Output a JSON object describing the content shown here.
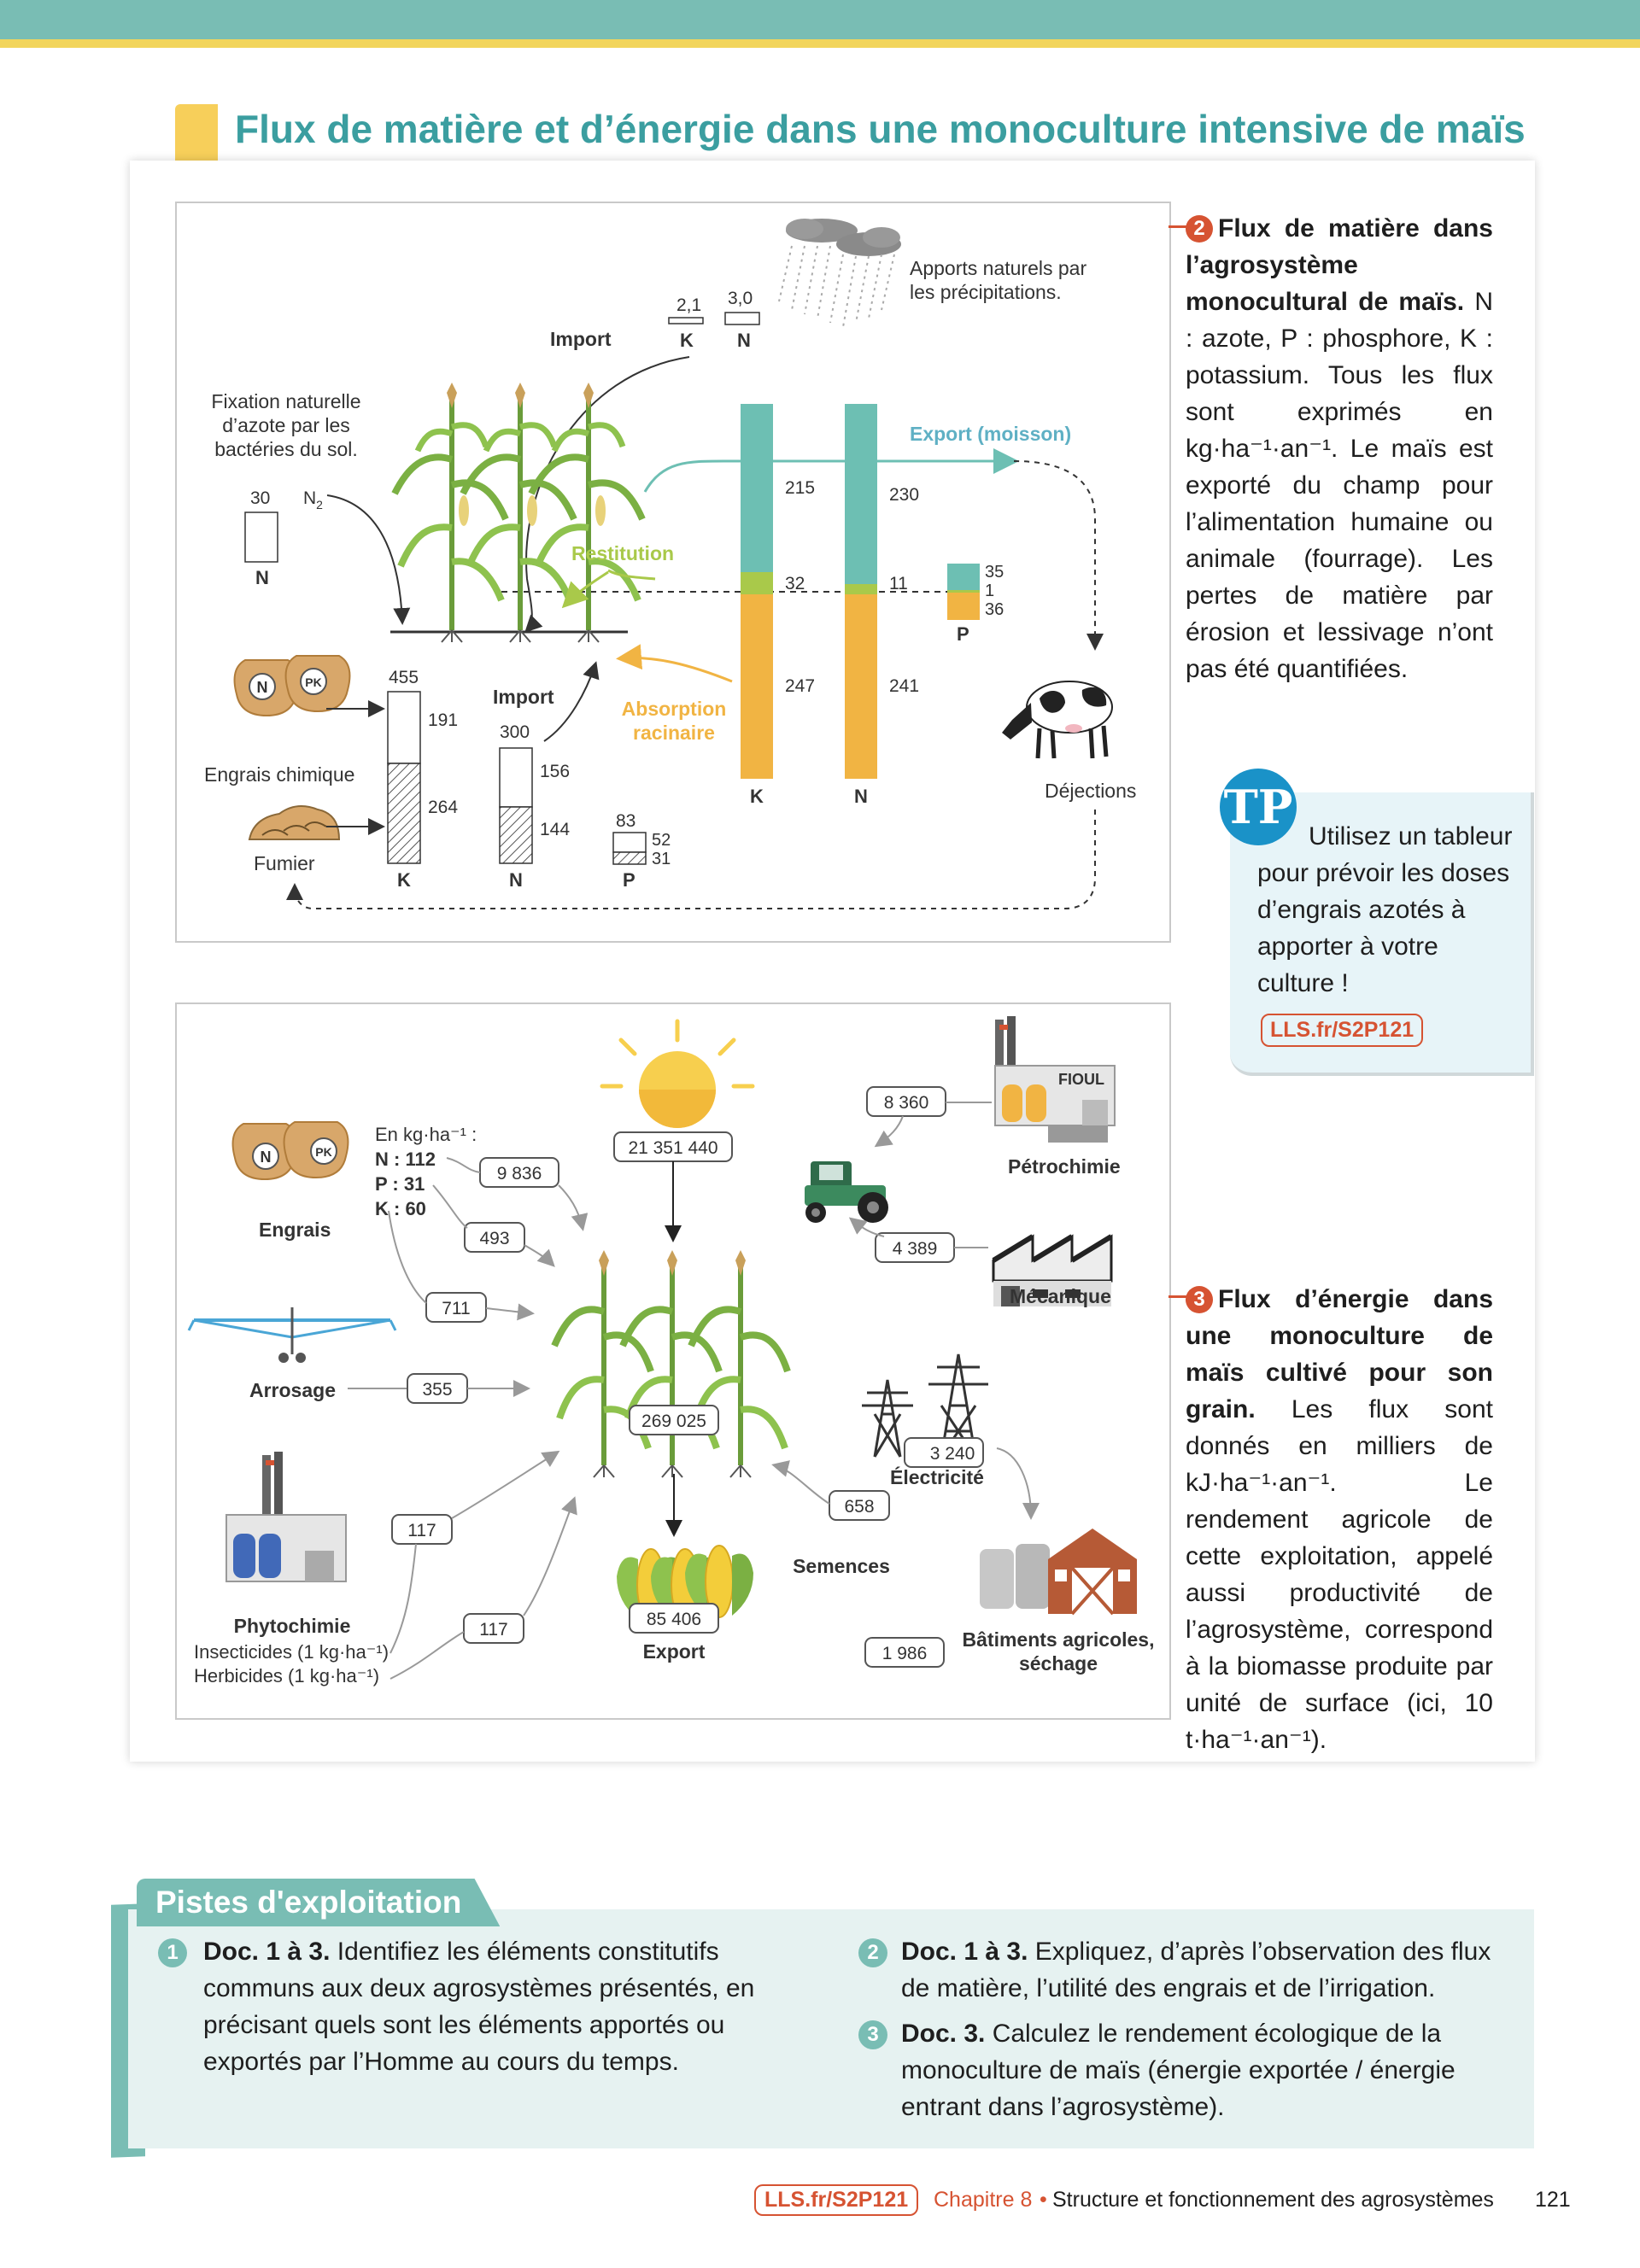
{
  "page": {
    "title": "Flux de matière et d’énergie dans une monoculture intensive de maïs"
  },
  "doc2": {
    "top_labels": {
      "k_value": "2,1",
      "k_letter": "K",
      "n_value": "3,0",
      "n_letter": "N",
      "import": "Import",
      "rain": [
        "Apports naturels par",
        "les précipitations."
      ]
    },
    "fixation": [
      "Fixation naturelle",
      "d’azote par les",
      "bactéries du sol."
    ],
    "fixation_value": "30",
    "n2": "N",
    "n2_sub": "2",
    "fixation_letter": "N",
    "restitution": "Restitution",
    "absorption": [
      "Absorption",
      "racinaire"
    ],
    "export_moisson": "Export (moisson)",
    "plant_bars": {
      "k": {
        "letter": "K",
        "export": "215",
        "restitution": "32",
        "absorption": "247"
      },
      "n": {
        "letter": "N",
        "export": "230",
        "restitution": "11",
        "absorption": "241"
      },
      "p": {
        "letter": "P",
        "export": "35",
        "restitution": "1",
        "absorption": "36"
      }
    },
    "engrais_label": "Engrais chimique",
    "fumier_label": "Fumier",
    "import_bottom": "Import",
    "input_bars": {
      "k": {
        "letter": "K",
        "total": "455",
        "engrais": "191",
        "fumier": "264"
      },
      "n": {
        "letter": "N",
        "total": "300",
        "engrais": "156",
        "fumier": "144"
      },
      "p": {
        "letter": "P",
        "total": "83",
        "engrais": "52",
        "fumier": "31"
      }
    },
    "dejections": "Déjections",
    "bag_n": "N",
    "bag_pk": "PK"
  },
  "caption2": {
    "num": "2",
    "bold": "Flux de matière dans l’agrosystème monocultural de maïs.",
    "text": " N : azote, P : phosphore, K : potassium. Tous les flux sont exprimés en kg·ha⁻¹·an⁻¹. Le maïs est exporté du champ pour l’alimentation humaine ou animale (fourrage). Les pertes de matière par érosion et lessivage n’ont pas été quantifiées."
  },
  "tp": {
    "badge": "TP",
    "text": "Utilisez un tableur pour prévoir les doses d’engrais azotés à apporter à votre culture !",
    "link": "LLS.fr/S2P121"
  },
  "doc3": {
    "engrais": {
      "label": "Engrais",
      "unit": "En kg·ha⁻¹ :",
      "n": "N : 112",
      "p": "P : 31",
      "k": "K : 60",
      "bag_n": "N",
      "bag_pk": "PK"
    },
    "values": {
      "sun": "21 351 440",
      "engrais_n": "9 836",
      "engrais_p": "493",
      "engrais_k": "711",
      "arrosage": "355",
      "plant": "269 025",
      "export": "85 406",
      "fioul": "8 360",
      "mecanique": "4 389",
      "electricite": "3 240",
      "semences": "658",
      "batiments": "1 986",
      "phyto1": "117",
      "phyto2": "117"
    },
    "labels": {
      "fioul": "FIOUL",
      "petrochimie": "Pétrochimie",
      "mecanique": "Mécanique",
      "arrosage": "Arrosage",
      "electricite": "Électricité",
      "semences": "Semences",
      "batiments": [
        "Bâtiments agricoles,",
        "séchage"
      ],
      "phytochimie": "Phytochimie",
      "insecticides": "Insecticides (1 kg·ha⁻¹)",
      "herbicides": "Herbicides (1 kg·ha⁻¹)",
      "export": "Export"
    }
  },
  "caption3": {
    "num": "3",
    "bold": "Flux d’énergie dans une monoculture de maïs cultivé pour son grain.",
    "text": " Les flux sont donnés en milliers de kJ·ha⁻¹·an⁻¹. Le rendement agricole de cette exploitation, appelé aussi productivité de l’agrosystème, correspond à la biomasse produite par unité de surface (ici, 10 t·ha⁻¹·an⁻¹)."
  },
  "pistes": {
    "title": "Pistes d'exploitation",
    "q1": {
      "num": "1",
      "ref": "Doc. 1 à 3.",
      "text": " Identifiez les éléments constitutifs communs aux deux agrosystèmes présentés, en précisant quels sont les éléments apportés ou exportés par l’Homme au cours du temps."
    },
    "q2": {
      "num": "2",
      "ref": "Doc. 1 à 3.",
      "text": " Expliquez, d’après l’observation des flux de matière, l’utilité des engrais et de l’irrigation."
    },
    "q3": {
      "num": "3",
      "ref": "Doc. 3.",
      "text": " Calculez le rendement écologique de la monoculture de maïs (énergie exportée / énergie entrant dans l’agrosystème)."
    }
  },
  "footer": {
    "link": "LLS.fr/S2P121",
    "chapter": "Chapitre 8",
    "dot": "•",
    "title": "Structure et fonctionnement des agrosystèmes",
    "page": "121"
  },
  "colors": {
    "teal": "#79bdb4",
    "title_teal": "#3b9ea0",
    "export_teal": "#6dbfb3",
    "restitution_green": "#a9c94a",
    "absorption_orange": "#f1b443",
    "accent_red": "#d65332",
    "tp_blue": "#1a92c8"
  }
}
